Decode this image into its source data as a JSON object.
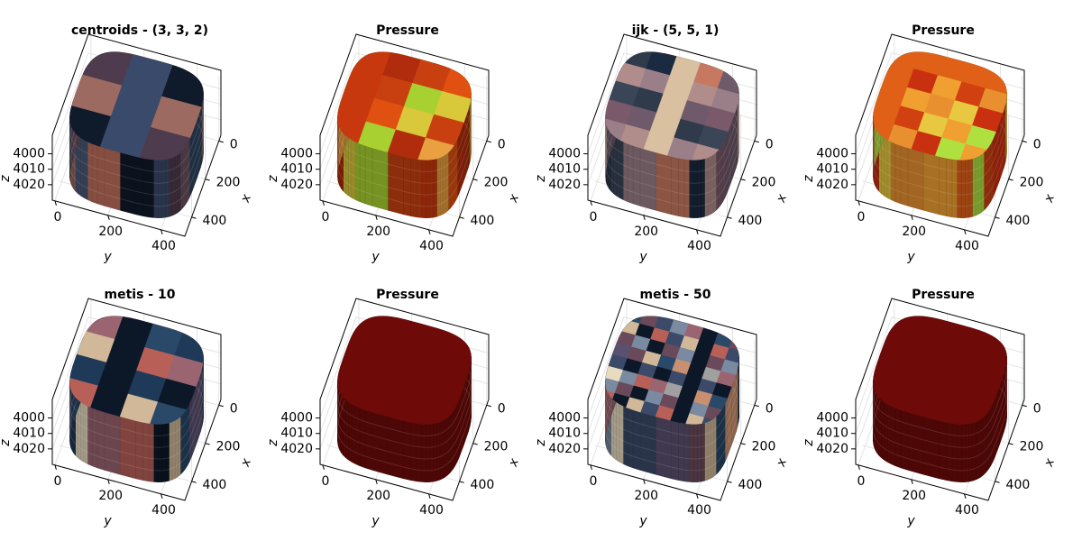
{
  "chart_data": [
    {
      "type": "mesh3d",
      "title": "centroids - (3, 3, 2)",
      "xlabel": "x",
      "ylabel": "y",
      "zlabel": "z",
      "xlim": [
        -30,
        500
      ],
      "ylim": [
        -10,
        490
      ],
      "zlim": [
        3988,
        4030
      ],
      "zreversed": true,
      "xticks": [
        0,
        200,
        400
      ],
      "yticks": [
        0,
        200,
        400
      ],
      "zticks": [
        4000,
        4010,
        4020
      ],
      "cells": 3,
      "colors": [
        "#0f1a2a",
        "#6b5160",
        "#4a5a7a",
        "#3a4a6a",
        "#2e4560",
        "#c0705d",
        "#4e3b4d",
        "#9c6a60"
      ]
    },
    {
      "type": "mesh3d",
      "title": "Pressure",
      "xlabel": "x",
      "ylabel": "y",
      "zlabel": "z",
      "xlim": [
        -30,
        500
      ],
      "ylim": [
        -10,
        490
      ],
      "zlim": [
        3988,
        4030
      ],
      "zreversed": true,
      "xticks": [
        0,
        200,
        400
      ],
      "yticks": [
        0,
        200,
        400
      ],
      "zticks": [
        4000,
        4010,
        4020
      ],
      "cells": 4,
      "colors": [
        "#c8380e",
        "#d8c83a",
        "#e8a040",
        "#a8d030",
        "#e05010",
        "#c84010",
        "#b02c0c"
      ]
    },
    {
      "type": "mesh3d",
      "title": "ijk - (5, 5, 1)",
      "xlabel": "x",
      "ylabel": "y",
      "zlabel": "z",
      "xlim": [
        -30,
        500
      ],
      "ylim": [
        -10,
        490
      ],
      "zlim": [
        3988,
        4030
      ],
      "zreversed": true,
      "xticks": [
        0,
        200,
        400
      ],
      "yticks": [
        0,
        200,
        400
      ],
      "zticks": [
        4000,
        4010,
        4020
      ],
      "cells": 5,
      "colors": [
        "#9a7f88",
        "#2f3a4a",
        "#6e5a6a",
        "#b08c8a",
        "#c77860",
        "#3a4658",
        "#d8c0a0",
        "#7a5a6a",
        "#1a2a40"
      ]
    },
    {
      "type": "mesh3d",
      "title": "Pressure",
      "xlabel": "x",
      "ylabel": "y",
      "zlabel": "z",
      "xlim": [
        -30,
        500
      ],
      "ylim": [
        -10,
        490
      ],
      "zlim": [
        3988,
        4030
      ],
      "zreversed": true,
      "xticks": [
        0,
        200,
        400
      ],
      "yticks": [
        0,
        200,
        400
      ],
      "zticks": [
        4000,
        4010,
        4020
      ],
      "cells": 5,
      "colors": [
        "#e06018",
        "#e8c840",
        "#b0e040",
        "#e89030",
        "#d04010",
        "#f0a030",
        "#c83010"
      ]
    },
    {
      "type": "mesh3d",
      "title": "metis - 10",
      "xlabel": "x",
      "ylabel": "y",
      "zlabel": "z",
      "xlim": [
        -30,
        500
      ],
      "ylim": [
        -10,
        490
      ],
      "zlim": [
        3988,
        4030
      ],
      "zreversed": true,
      "xticks": [
        0,
        200,
        400
      ],
      "yticks": [
        0,
        200,
        400
      ],
      "zticks": [
        4000,
        4010,
        4020
      ],
      "cells": 4,
      "colors": [
        "#b86058",
        "#2a4868",
        "#e8dcc0",
        "#0c1828",
        "#5a5070",
        "#9a6470",
        "#d0b898",
        "#1e3a58"
      ]
    },
    {
      "type": "mesh3d",
      "title": "Pressure",
      "xlabel": "x",
      "ylabel": "y",
      "zlabel": "z",
      "xlim": [
        -30,
        500
      ],
      "ylim": [
        -10,
        490
      ],
      "zlim": [
        3988,
        4030
      ],
      "zreversed": true,
      "xticks": [
        0,
        200,
        400
      ],
      "yticks": [
        0,
        200,
        400
      ],
      "zticks": [
        4000,
        4010,
        4020
      ],
      "cells": 1,
      "colors": [
        "#6e0a08"
      ]
    },
    {
      "type": "mesh3d",
      "title": "metis - 50",
      "xlabel": "x",
      "ylabel": "y",
      "zlabel": "z",
      "xlim": [
        -30,
        500
      ],
      "ylim": [
        -10,
        490
      ],
      "zlim": [
        3988,
        4030
      ],
      "zreversed": true,
      "xticks": [
        0,
        200,
        400
      ],
      "yticks": [
        0,
        200,
        400
      ],
      "zticks": [
        4000,
        4010,
        4020
      ],
      "cells": 8,
      "colors": [
        "#b86058",
        "#2a4868",
        "#e8dcc0",
        "#0c1828",
        "#5a5070",
        "#9a6470",
        "#d0b898",
        "#7a8aa0",
        "#c89070",
        "#3a4a68",
        "#a0a0a0",
        "#6a4a5a"
      ]
    },
    {
      "type": "mesh3d",
      "title": "Pressure",
      "xlabel": "x",
      "ylabel": "y",
      "zlabel": "z",
      "xlim": [
        -30,
        500
      ],
      "ylim": [
        -10,
        490
      ],
      "zlim": [
        3988,
        4030
      ],
      "zreversed": true,
      "xticks": [
        0,
        200,
        400
      ],
      "yticks": [
        0,
        200,
        400
      ],
      "zticks": [
        4000,
        4010,
        4020
      ],
      "cells": 1,
      "colors": [
        "#6e0a08"
      ]
    }
  ]
}
